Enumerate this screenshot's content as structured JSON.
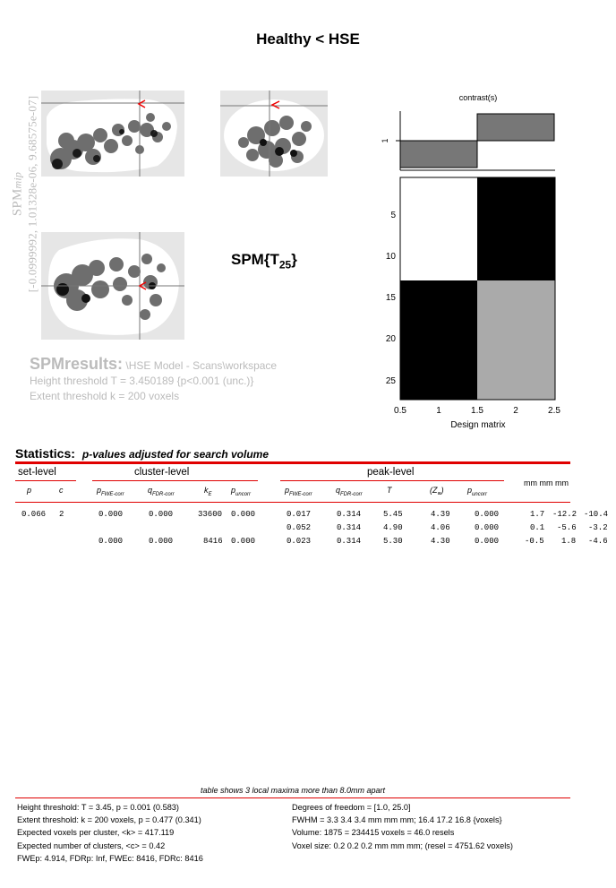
{
  "title": "Healthy < HSE",
  "mip_label": {
    "spm": "SPM",
    "mip": "mip",
    "coords": "[-0.0999992, 1.01328e-06, 9.68575e-07]"
  },
  "stat_image": {
    "base": "SPM{T",
    "df": "25",
    "close": "}"
  },
  "results": {
    "heading": "SPMresults:",
    "path": "\\HSE Model - Scans\\workspace",
    "height_threshold": "Height threshold T = 3.450189  {p<0.001 (unc.)}",
    "extent_threshold": "Extent threshold k = 200 voxels"
  },
  "contrast": {
    "title": "contrast(s)",
    "row_label": "1",
    "values": [
      -1,
      1
    ],
    "color": "#777777"
  },
  "design_matrix": {
    "xlabel": "Design matrix",
    "x_ticks": [
      "0.5",
      "1",
      "1.5",
      "2",
      "2.5"
    ],
    "y_ticks": [
      "5",
      "10",
      "15",
      "20",
      "25"
    ],
    "rows": 27,
    "cols": 2,
    "col1": {
      "rows_1_13": "#ffffff",
      "rows_14_27": "#000000"
    },
    "col2": {
      "rows_1_13": "#000000",
      "rows_14_27": "#aaaaaa"
    }
  },
  "statistics": {
    "heading": "Statistics:",
    "subheading": "p-values adjusted for search volume",
    "groups": {
      "set": "set-level",
      "cluster": "cluster-level",
      "peak": "peak-level",
      "mm": "mm mm mm"
    },
    "cols": {
      "p": "p",
      "c": "c",
      "cl_pfwe": "p",
      "cl_pfwe_sub": "FWE-corr",
      "cl_qfdr": "q",
      "cl_qfdr_sub": "FDR-corr",
      "kE": "k",
      "kE_sub": "E",
      "cl_punc": "p",
      "cl_punc_sub": "uncorr",
      "pk_pfwe": "p",
      "pk_pfwe_sub": "FWE-corr",
      "pk_qfdr": "q",
      "pk_qfdr_sub": "FDR-corr",
      "T": "T",
      "Z": "(Z",
      "Z_sub": "≡",
      "Z_close": ")",
      "pk_punc": "p",
      "pk_punc_sub": "uncorr"
    },
    "rows": [
      [
        "0.066",
        "2",
        "0.000",
        "0.000",
        "33600",
        "0.000",
        "0.017",
        "0.314",
        "5.45",
        "4.39",
        "0.000",
        "1.7",
        "-12.2",
        "-10.4"
      ],
      [
        "",
        "",
        "",
        "",
        "",
        "",
        "0.052",
        "0.314",
        "4.90",
        "4.06",
        "0.000",
        "0.1",
        "-5.6",
        "-3.2"
      ],
      [
        "",
        "",
        "0.000",
        "0.000",
        "8416",
        "0.000",
        "0.023",
        "0.314",
        "5.30",
        "4.30",
        "0.000",
        "-0.5",
        "1.8",
        "-4.6"
      ]
    ]
  },
  "footer": {
    "note": "table shows 3 local maxima more than 8.0mm apart",
    "left": [
      "Height threshold: T = 3.45, p = 0.001 (0.583)",
      "Extent threshold: k = 200 voxels, p = 0.477 (0.341)",
      "Expected voxels per cluster, <k> = 417.119",
      "Expected number of clusters, <c> = 0.42",
      "FWEp: 4.914, FDRp: Inf, FWEc: 8416, FDRc: 8416"
    ],
    "right": [
      "Degrees of freedom = [1.0, 25.0]",
      "FWHM = 3.3 3.4 3.4 mm mm mm; 16.4 17.2 16.8 {voxels}",
      "Volume: 1875 = 234415 voxels = 46.0 resels",
      "Voxel size: 0.2 0.2 0.2 mm mm mm; (resel = 4751.62 voxels)"
    ]
  }
}
